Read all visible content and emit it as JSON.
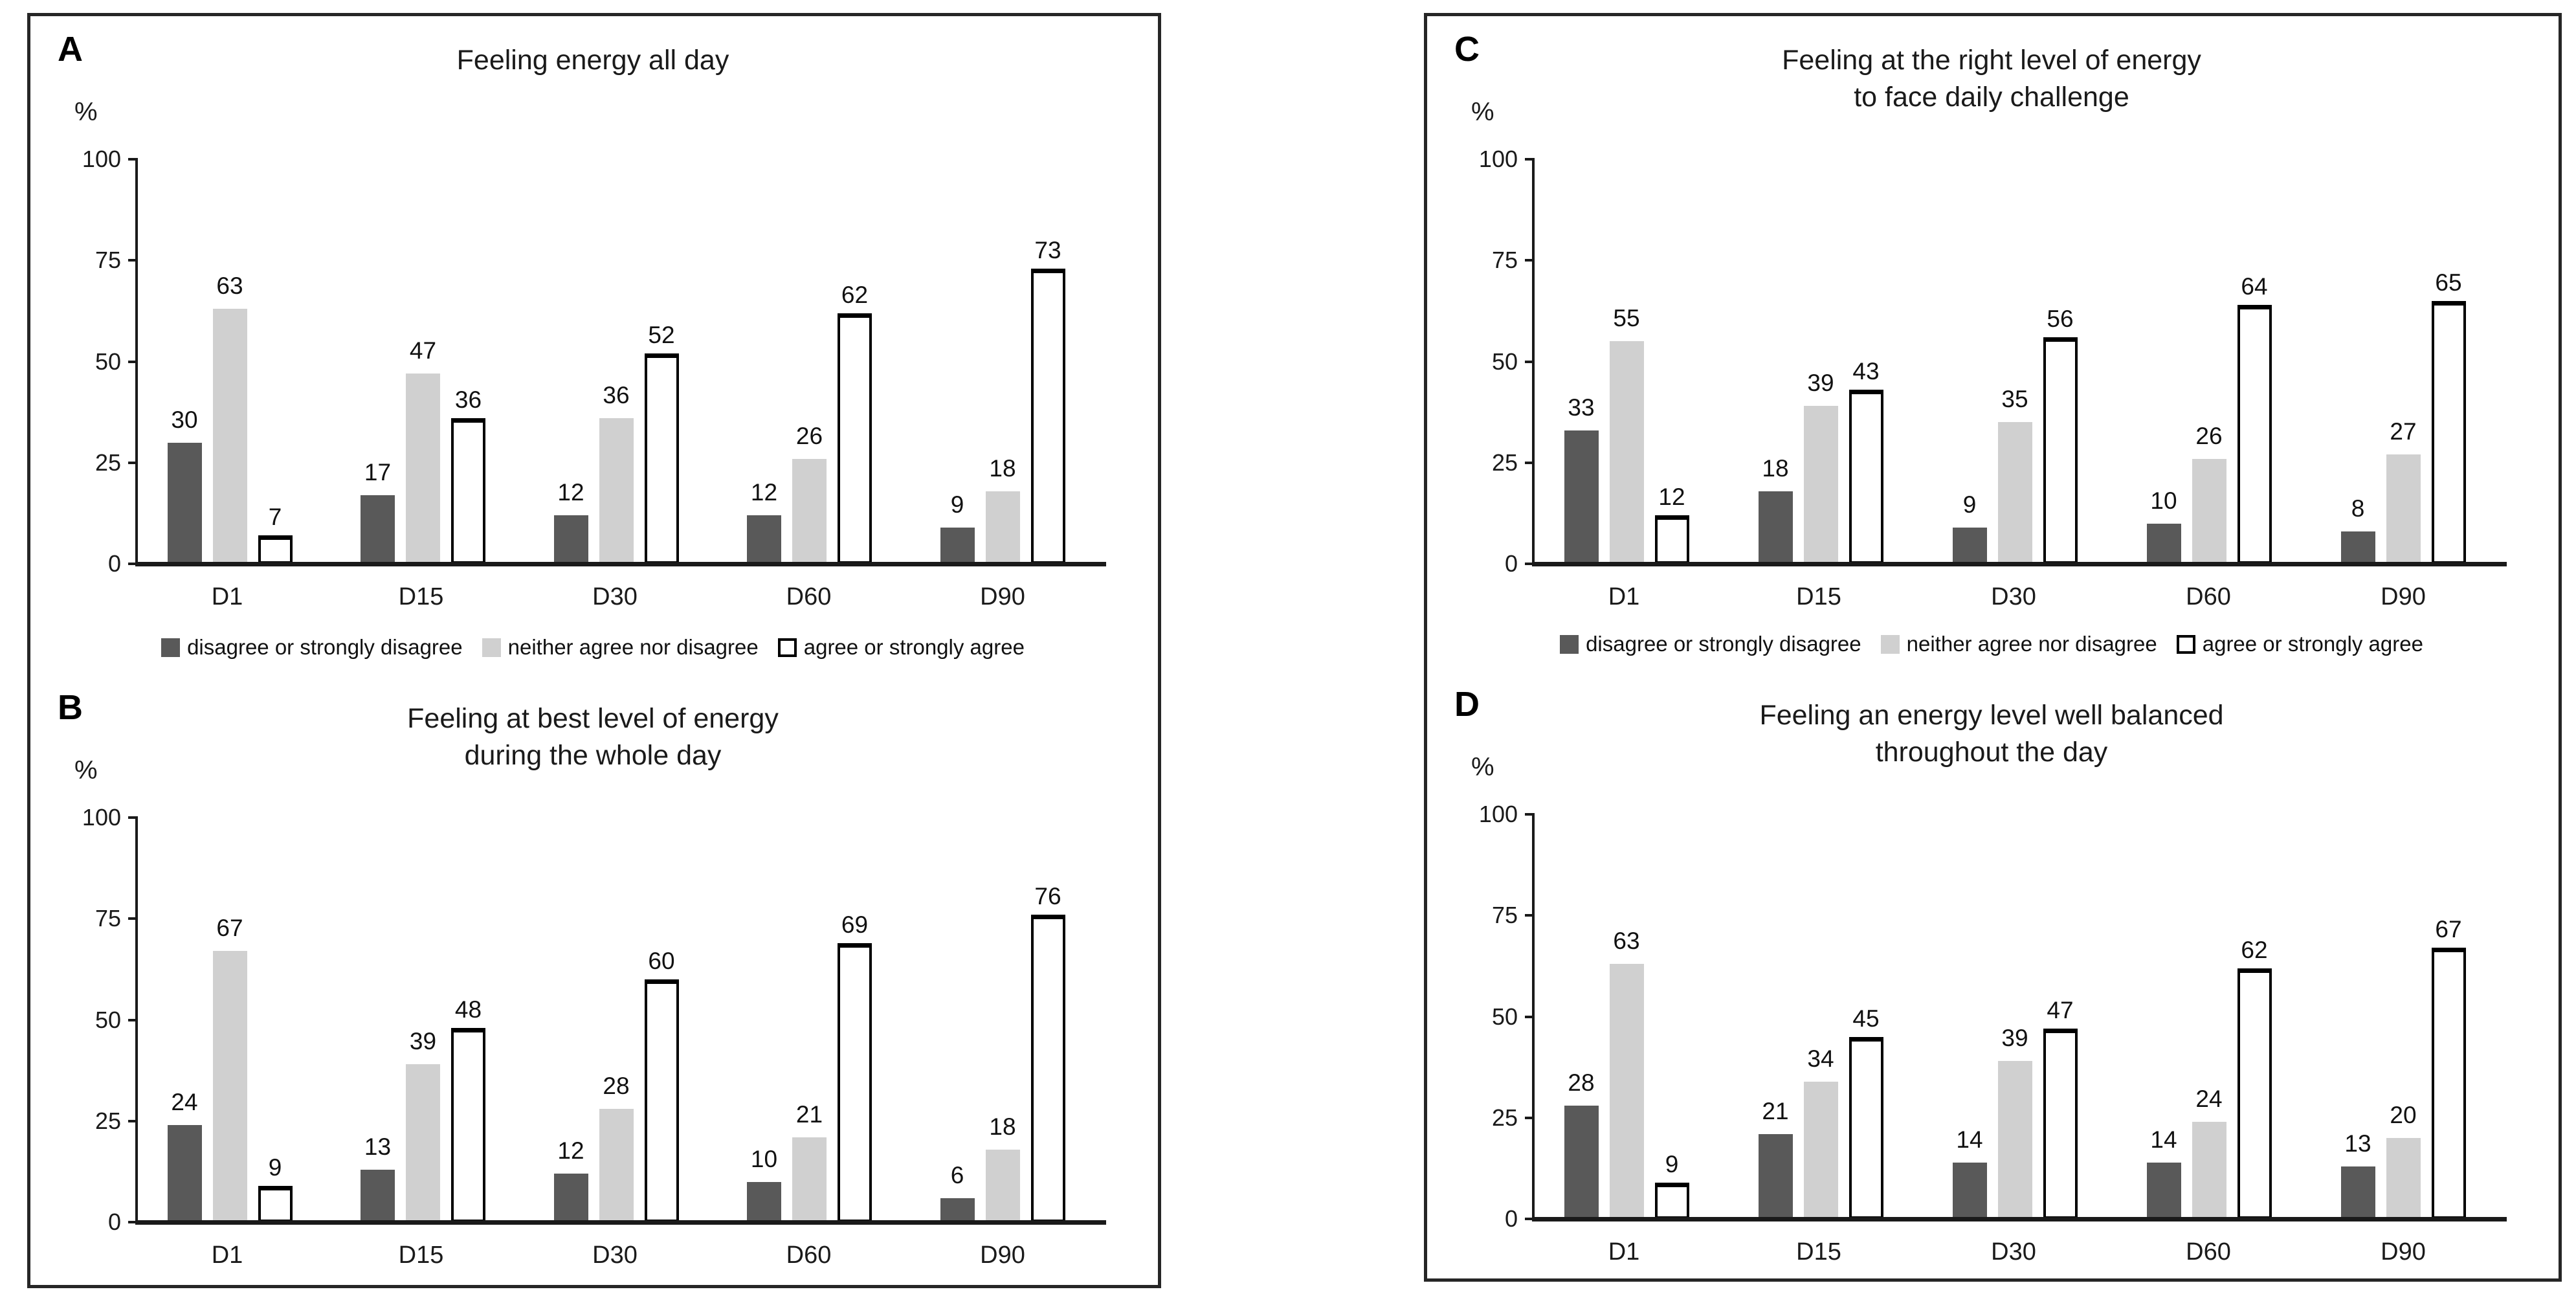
{
  "figure": {
    "description": "Four-panel bar chart figure of energy perception survey responses at five time points"
  },
  "colors": {
    "dark_series": "#595959",
    "light_series": "#d0d0d0",
    "outline_series_fill": "#ffffff",
    "outline_series_border": "#000000",
    "axis": "#1a1a1a",
    "box_border": "#262626"
  },
  "legend": {
    "items": [
      {
        "label": "disagree or strongly disagree",
        "style": "dark"
      },
      {
        "label": "neither agree nor disagree",
        "style": "light"
      },
      {
        "label": "agree or strongly agree",
        "style": "outline"
      }
    ]
  },
  "chart_data": [
    {
      "type": "bar",
      "panel": "A",
      "title_lines": [
        "Feeling energy all day"
      ],
      "ylabel": "%",
      "ylim": [
        0,
        100
      ],
      "yticks": [
        100,
        75,
        50,
        25,
        0
      ],
      "grid": false,
      "legend_position": "below",
      "categories": [
        "D1",
        "D15",
        "D30",
        "D60",
        "D90"
      ],
      "series": [
        {
          "name": "disagree or strongly disagree",
          "style": "dark",
          "values": [
            30,
            17,
            12,
            12,
            9
          ]
        },
        {
          "name": "neither agree nor disagree",
          "style": "light",
          "values": [
            63,
            47,
            36,
            26,
            18
          ]
        },
        {
          "name": "agree or strongly agree",
          "style": "outline",
          "values": [
            7,
            36,
            52,
            62,
            73
          ]
        }
      ]
    },
    {
      "type": "bar",
      "panel": "B",
      "title_lines": [
        "Feeling at best level of energy",
        "during the whole day"
      ],
      "ylabel": "%",
      "ylim": [
        0,
        100
      ],
      "yticks": [
        100,
        75,
        50,
        25,
        0
      ],
      "grid": false,
      "legend_position": "above",
      "categories": [
        "D1",
        "D15",
        "D30",
        "D60",
        "D90"
      ],
      "series": [
        {
          "name": "disagree or strongly disagree",
          "style": "dark",
          "values": [
            24,
            13,
            12,
            10,
            6
          ]
        },
        {
          "name": "neither agree nor disagree",
          "style": "light",
          "values": [
            67,
            39,
            28,
            21,
            18
          ]
        },
        {
          "name": "agree or strongly agree",
          "style": "outline",
          "values": [
            9,
            48,
            60,
            69,
            76
          ]
        }
      ]
    },
    {
      "type": "bar",
      "panel": "C",
      "title_lines": [
        "Feeling at the right level of energy",
        "to face daily challenge"
      ],
      "ylabel": "%",
      "ylim": [
        0,
        100
      ],
      "yticks": [
        100,
        75,
        50,
        25,
        0
      ],
      "grid": false,
      "legend_position": "below",
      "categories": [
        "D1",
        "D15",
        "D30",
        "D60",
        "D90"
      ],
      "series": [
        {
          "name": "disagree or strongly disagree",
          "style": "dark",
          "values": [
            33,
            18,
            9,
            10,
            8
          ]
        },
        {
          "name": "neither agree nor disagree",
          "style": "light",
          "values": [
            55,
            39,
            35,
            26,
            27
          ]
        },
        {
          "name": "agree or strongly agree",
          "style": "outline",
          "values": [
            12,
            43,
            56,
            64,
            65
          ]
        }
      ]
    },
    {
      "type": "bar",
      "panel": "D",
      "title_lines": [
        "Feeling an energy level well balanced",
        "throughout the day"
      ],
      "ylabel": "%",
      "ylim": [
        0,
        100
      ],
      "yticks": [
        100,
        75,
        50,
        25,
        0
      ],
      "grid": false,
      "legend_position": "above",
      "categories": [
        "D1",
        "D15",
        "D30",
        "D60",
        "D90"
      ],
      "series": [
        {
          "name": "disagree or strongly disagree",
          "style": "dark",
          "values": [
            28,
            21,
            14,
            14,
            13
          ]
        },
        {
          "name": "neither agree nor disagree",
          "style": "light",
          "values": [
            63,
            34,
            39,
            24,
            20
          ]
        },
        {
          "name": "agree or strongly agree",
          "style": "outline",
          "values": [
            9,
            45,
            47,
            62,
            67
          ]
        }
      ]
    }
  ]
}
